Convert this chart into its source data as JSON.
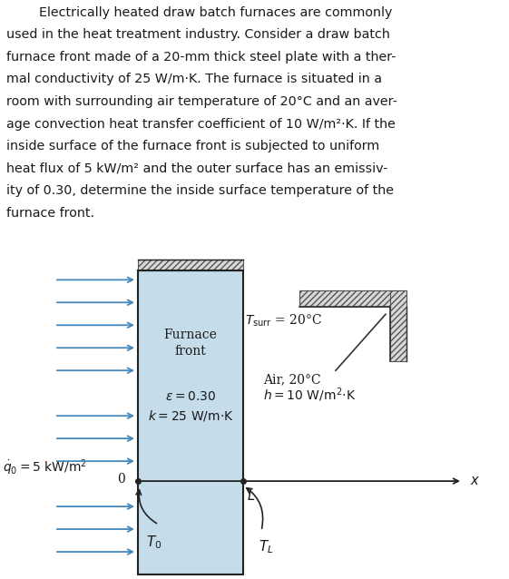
{
  "paragraph_lines": [
    "        Electrically heated draw batch furnaces are commonly",
    "used in the heat treatment industry. Consider a draw batch",
    "furnace front made of a 20-mm thick steel plate with a ther-",
    "mal conductivity of 25 W/m·K. The furnace is situated in a",
    "room with surrounding air temperature of 20°C and an aver-",
    "age convection heat transfer coefficient of 10 W/m²·K. If the",
    "inside surface of the furnace front is subjected to uniform",
    "heat flux of 5 kW/m² and the outer surface has an emissiv-",
    "ity of 0.30, determine the inside surface temperature of the",
    "furnace front."
  ],
  "plate_color": "#c5dcea",
  "arrow_color": "#4488bb",
  "bg_color": "#ffffff",
  "text_color": "#1a1a1a",
  "dark_color": "#222222"
}
